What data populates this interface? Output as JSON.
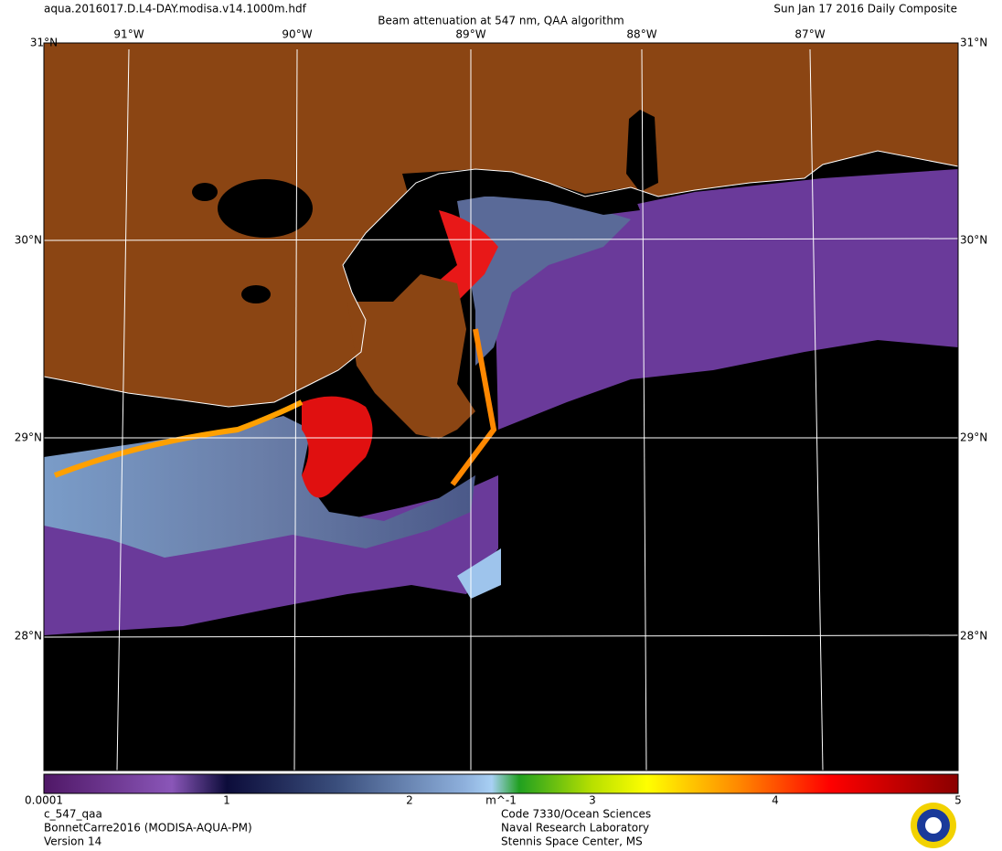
{
  "header": {
    "filename": "aqua.2016017.D.L4-DAY.modisa.v14.1000m.hdf",
    "title": "Beam attenuation at 547 nm, QAA algorithm",
    "date": "Sun Jan 17 2016 Daily Composite"
  },
  "map": {
    "lat_labels": [
      "31°N",
      "30°N",
      "29°N",
      "28°N"
    ],
    "lon_labels": [
      "91°W",
      "90°W",
      "89°W",
      "88°W",
      "87°W"
    ]
  },
  "colorbar": {
    "ticks": [
      "0.0001",
      "1",
      "2",
      "3",
      "4",
      "5"
    ],
    "unit": "m^-1"
  },
  "footer": {
    "left": [
      "c_547_qaa",
      "BonnetCarre2016 (MODISA-AQUA-PM)",
      "Version 14"
    ],
    "right": [
      "Code 7330/Ocean Sciences",
      "Naval Research Laboratory",
      "Stennis Space Center, MS"
    ]
  }
}
